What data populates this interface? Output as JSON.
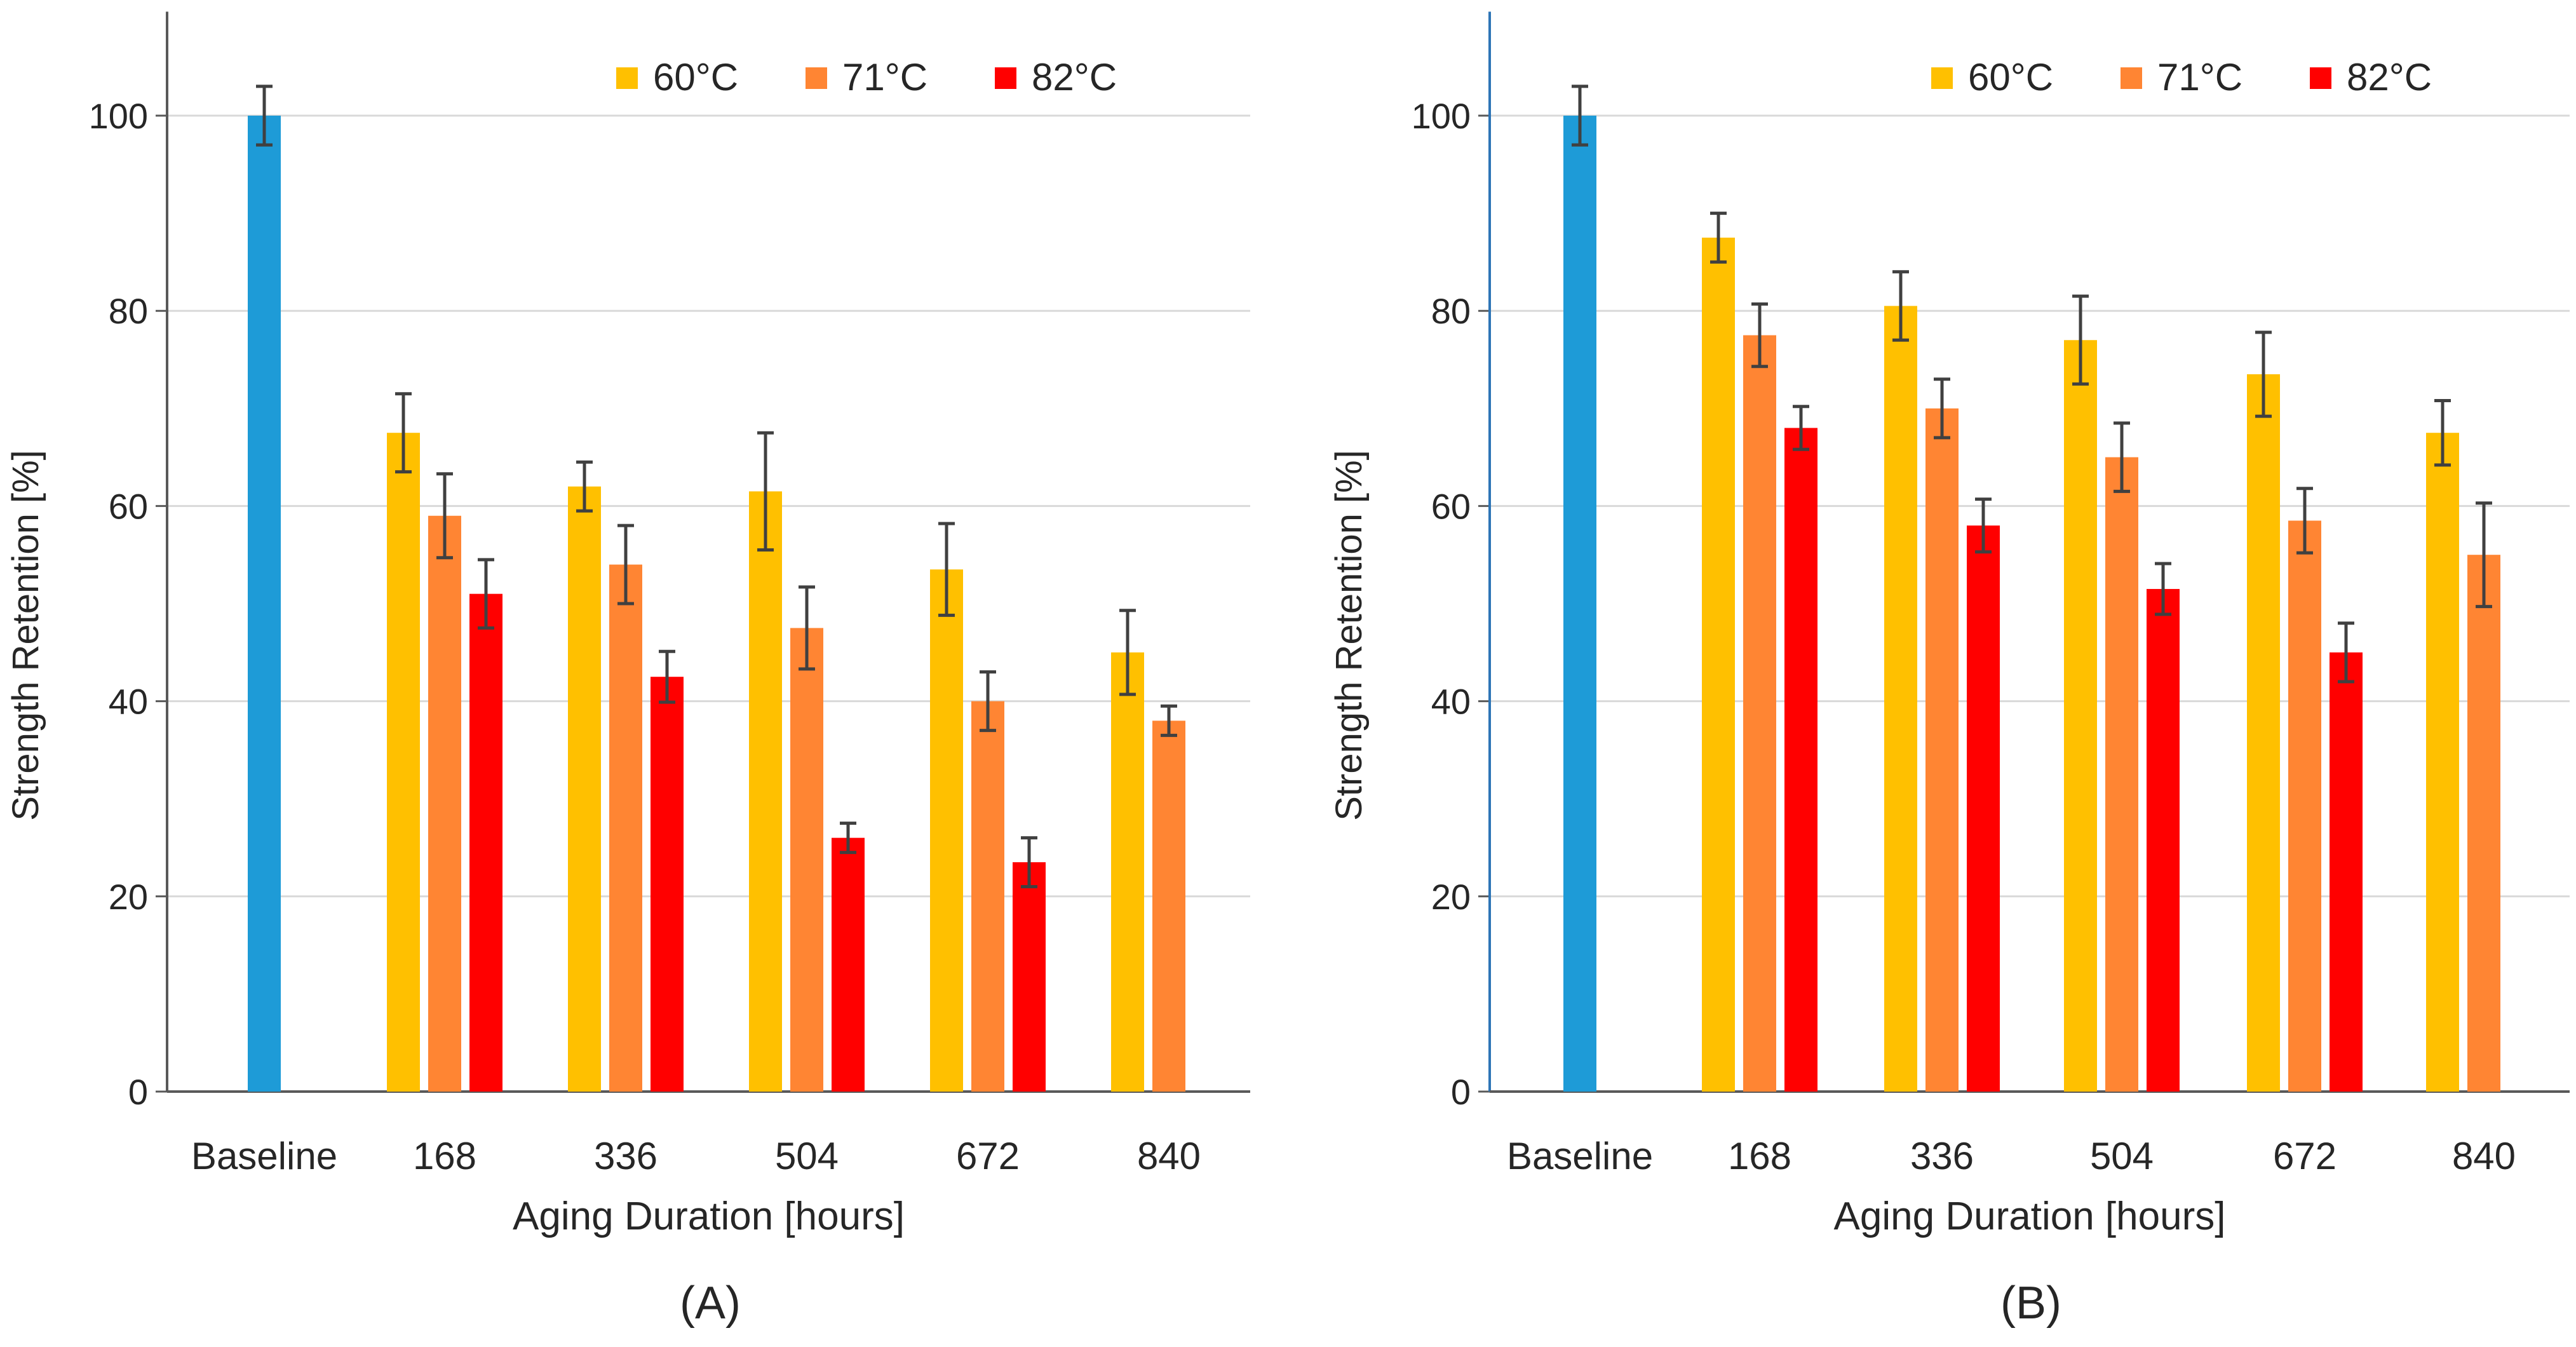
{
  "colors": {
    "baseline": "#1e9bd7",
    "s60": "#ffc000",
    "s71": "#ff8533",
    "s82": "#ff0000",
    "grid": "#d9d9d9",
    "axis": "#595959",
    "errorbar": "#404040",
    "text": "#262626"
  },
  "chart_data": [
    {
      "type": "bar",
      "panel_label": "(A)",
      "xlabel": "Aging Duration [hours]",
      "ylabel": "Strength Retention [%]",
      "ylim": [
        0,
        110
      ],
      "yticks": [
        0,
        20,
        40,
        60,
        80,
        100
      ],
      "grid": true,
      "legend_position": "top-right",
      "categories": [
        "Baseline",
        "168",
        "336",
        "504",
        "672",
        "840"
      ],
      "baseline": {
        "value": 100,
        "error": 3
      },
      "series": [
        {
          "name": "60°C",
          "values": [
            null,
            67.5,
            62,
            61.5,
            53.5,
            45
          ],
          "errors": [
            null,
            4,
            2.5,
            6,
            4.7,
            4.3
          ]
        },
        {
          "name": "71°C",
          "values": [
            null,
            59,
            54,
            47.5,
            40,
            38
          ],
          "errors": [
            null,
            4.3,
            4,
            4.2,
            3,
            1.5
          ]
        },
        {
          "name": "82°C",
          "values": [
            null,
            51,
            42.5,
            26,
            23.5,
            null
          ],
          "errors": [
            null,
            3.5,
            2.6,
            1.5,
            2.5,
            null
          ]
        }
      ]
    },
    {
      "type": "bar",
      "panel_label": "(B)",
      "xlabel": "Aging Duration [hours]",
      "ylabel": "Strength Retention [%]",
      "ylim": [
        0,
        110
      ],
      "yticks": [
        0,
        20,
        40,
        60,
        80,
        100
      ],
      "grid": true,
      "legend_position": "top-right",
      "categories": [
        "Baseline",
        "168",
        "336",
        "504",
        "672",
        "840"
      ],
      "baseline": {
        "value": 100,
        "error": 3
      },
      "series": [
        {
          "name": "60°C",
          "values": [
            null,
            87.5,
            80.5,
            77,
            73.5,
            67.5
          ],
          "errors": [
            null,
            2.5,
            3.5,
            4.5,
            4.3,
            3.3
          ]
        },
        {
          "name": "71°C",
          "values": [
            null,
            77.5,
            70,
            65,
            58.5,
            55
          ],
          "errors": [
            null,
            3.2,
            3,
            3.5,
            3.3,
            5.3
          ]
        },
        {
          "name": "82°C",
          "values": [
            null,
            68,
            58,
            51.5,
            45,
            null
          ],
          "errors": [
            null,
            2.2,
            2.7,
            2.6,
            3,
            null
          ]
        }
      ]
    }
  ]
}
